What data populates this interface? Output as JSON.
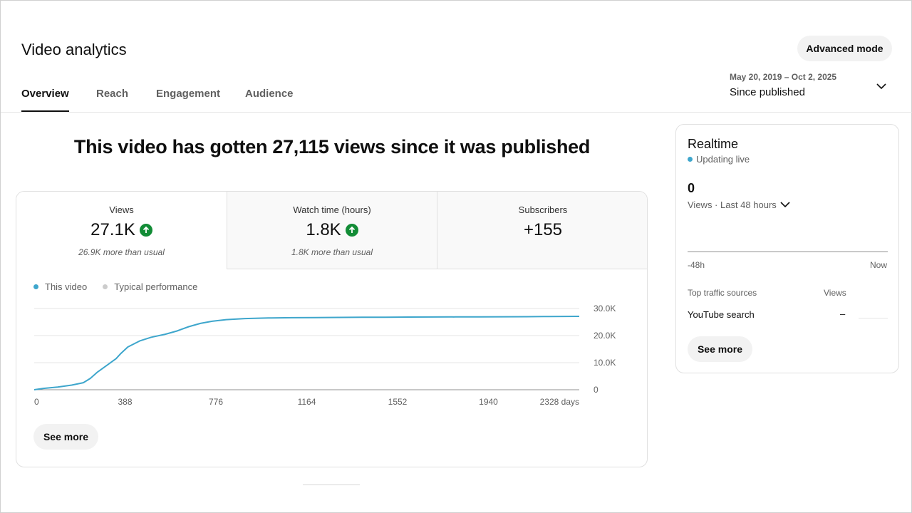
{
  "header": {
    "title": "Video analytics",
    "advanced_mode_label": "Advanced mode",
    "date_range": "May 20, 2019 – Oct 2, 2025",
    "date_period": "Since published"
  },
  "tabs": [
    {
      "label": "Overview",
      "active": true
    },
    {
      "label": "Reach",
      "active": false
    },
    {
      "label": "Engagement",
      "active": false
    },
    {
      "label": "Audience",
      "active": false
    }
  ],
  "main": {
    "headline": "This video has gotten 27,115 views since it was published",
    "metrics": [
      {
        "label": "Views",
        "value": "27.1K",
        "trend": "up",
        "note": "26.9K more than usual"
      },
      {
        "label": "Watch time (hours)",
        "value": "1.8K",
        "trend": "up",
        "note": "1.8K more than usual"
      },
      {
        "label": "Subscribers",
        "value": "+155",
        "trend": "",
        "note": ""
      }
    ],
    "legend": [
      {
        "label": "This video",
        "color": "#3ea6cc"
      },
      {
        "label": "Typical performance",
        "color": "#cccccc"
      }
    ],
    "see_more_label": "See more"
  },
  "chart_data": {
    "type": "line",
    "title": "",
    "xlabel": "",
    "ylabel": "",
    "x_ticks": [
      "0",
      "388",
      "776",
      "1164",
      "1552",
      "1940",
      "2328 days"
    ],
    "y_ticks": [
      "0",
      "10.0K",
      "20.0K",
      "30.0K"
    ],
    "xlim": [
      0,
      2328
    ],
    "ylim": [
      0,
      30000
    ],
    "grid": true,
    "series": [
      {
        "name": "This video",
        "color": "#3ea6cc",
        "x": [
          0,
          40,
          100,
          160,
          210,
          240,
          270,
          310,
          350,
          370,
          400,
          450,
          500,
          560,
          610,
          660,
          710,
          760,
          820,
          900,
          1000,
          1100,
          1200,
          1300,
          1400,
          1500,
          1600,
          1700,
          1800,
          1900,
          2000,
          2100,
          2200,
          2328
        ],
        "values": [
          0,
          500,
          1000,
          1700,
          2600,
          4200,
          6500,
          9000,
          11500,
          13400,
          15800,
          18000,
          19400,
          20500,
          21700,
          23300,
          24500,
          25300,
          25900,
          26300,
          26500,
          26600,
          26650,
          26700,
          26750,
          26800,
          26850,
          26880,
          26900,
          26920,
          26950,
          26980,
          27050,
          27115
        ]
      }
    ]
  },
  "realtime": {
    "title": "Realtime",
    "status": "Updating live",
    "status_color": "#3ea6cc",
    "count": "0",
    "period": "Views · Last 48 hours",
    "axis_min": "-48h",
    "axis_max": "Now",
    "sources_header": "Top traffic sources",
    "views_header": "Views",
    "source_name": "YouTube search",
    "source_value": "–",
    "see_more_label": "See more"
  }
}
